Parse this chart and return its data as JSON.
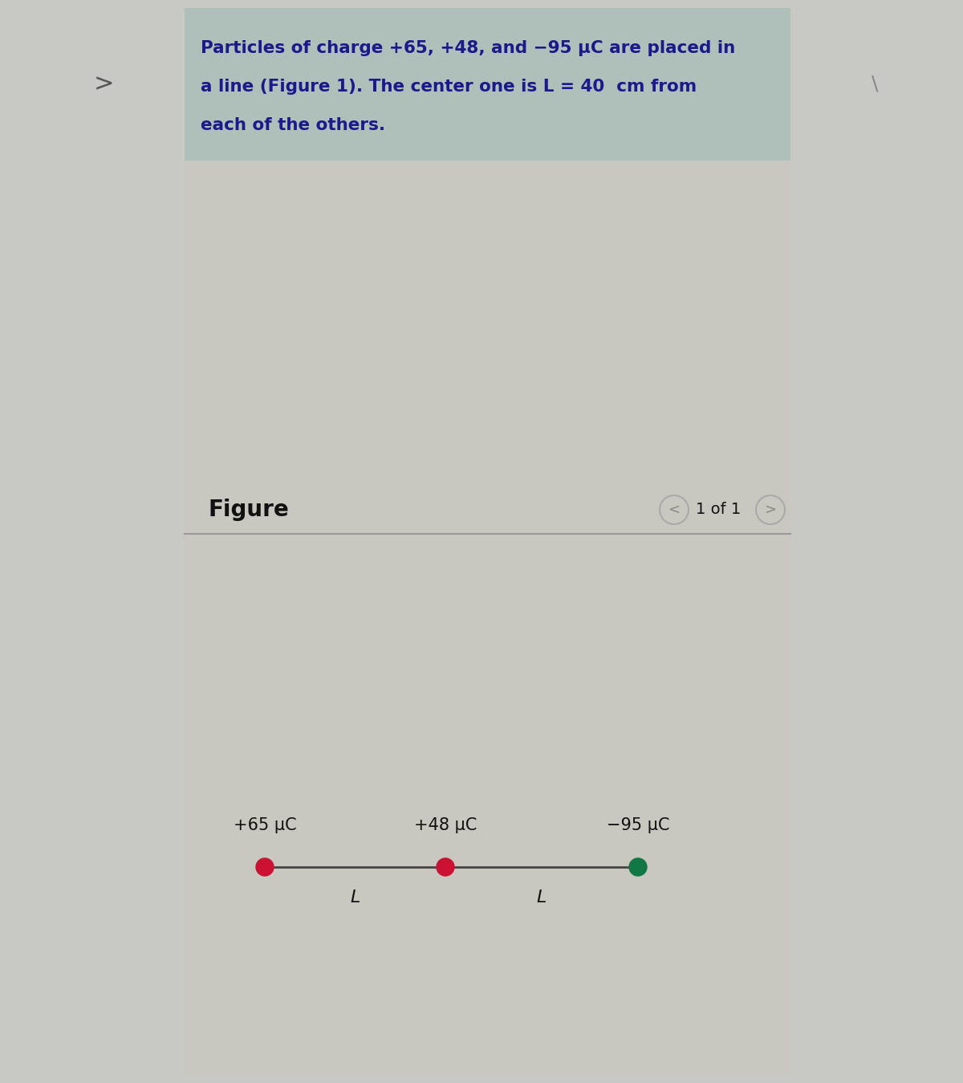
{
  "bg_color": "#c8c8c4",
  "header_bg": "#afc0bb",
  "panel_bg": "#c8c8c0",
  "header_text_line1": "Particles of charge +65, +48, and −95 μC are placed in",
  "header_text_line2": "a line (Figure 1). The center one is L = 40  cm from",
  "header_text_line3": "each of the others.",
  "header_text_color": "#1a1a8c",
  "figure_label": "Figure",
  "nav_label": "1 of 1",
  "charges": [
    "+65 μC",
    "+48 μC",
    "−95 μC"
  ],
  "charge_colors": [
    "#cc1133",
    "#cc1133",
    "#117744"
  ],
  "line_color": "#444444",
  "label_color": "#111111",
  "nav_arrow_color": "#888888",
  "separator_color": "#999999",
  "left_arrow": ">",
  "right_arrow": "\\"
}
